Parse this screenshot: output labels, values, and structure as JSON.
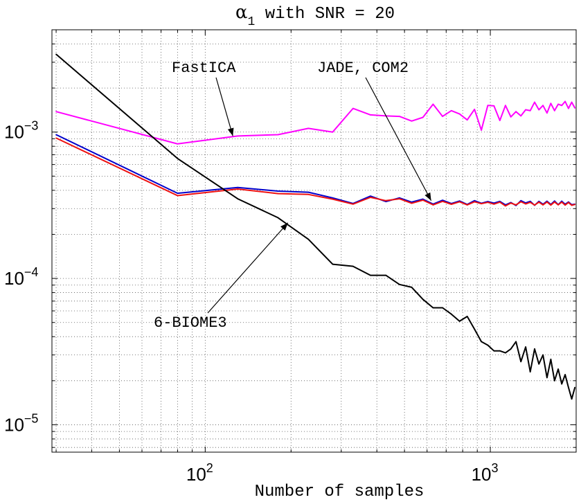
{
  "chart_data": {
    "type": "line",
    "title": {
      "symbol": "α",
      "subscript": "1",
      "text": " with SNR = 20"
    },
    "xlabel": "Number of samples",
    "ylabel": "",
    "xscale": "log",
    "yscale": "log",
    "xlim": [
      29,
      2000
    ],
    "ylim": [
      6.5e-06,
      0.005
    ],
    "grid": true,
    "x_ticks": [
      {
        "value": 100,
        "base": "10",
        "exp": "2"
      },
      {
        "value": 1000,
        "base": "10",
        "exp": "3"
      }
    ],
    "y_ticks": [
      {
        "value": 0.001,
        "base": "10",
        "exp": "−3"
      },
      {
        "value": 0.0001,
        "base": "10",
        "exp": "−4"
      },
      {
        "value": 1e-05,
        "base": "10",
        "exp": "−5"
      }
    ],
    "series": [
      {
        "name": "FastICA",
        "color": "#ff00ff",
        "x": [
          30,
          80,
          130,
          180,
          230,
          280,
          330,
          380,
          430,
          480,
          530,
          580,
          630,
          680,
          730,
          780,
          830,
          880,
          930,
          980,
          1030,
          1080,
          1130,
          1180,
          1230,
          1280,
          1330,
          1380,
          1430,
          1480,
          1530,
          1580,
          1630,
          1680,
          1730,
          1780,
          1830,
          1880,
          1930,
          1980
        ],
        "y": [
          0.00138,
          0.00083,
          0.00094,
          0.00096,
          0.00106,
          0.001,
          0.00145,
          0.00131,
          0.00129,
          0.00128,
          0.00119,
          0.00126,
          0.00155,
          0.00128,
          0.0014,
          0.00133,
          0.00121,
          0.00143,
          0.00103,
          0.00152,
          0.00151,
          0.0012,
          0.00152,
          0.00127,
          0.00138,
          0.00129,
          0.00142,
          0.0014,
          0.0016,
          0.00142,
          0.00152,
          0.00135,
          0.00157,
          0.0014,
          0.00155,
          0.00152,
          0.00162,
          0.00145,
          0.0016,
          0.00146
        ]
      },
      {
        "name": "JADE",
        "color": "#0000cc",
        "x": [
          30,
          80,
          130,
          180,
          230,
          280,
          330,
          380,
          430,
          480,
          530,
          580,
          630,
          680,
          730,
          780,
          830,
          880,
          930,
          980,
          1030,
          1080,
          1130,
          1180,
          1230,
          1280,
          1330,
          1380,
          1430,
          1480,
          1530,
          1580,
          1630,
          1680,
          1730,
          1780,
          1830,
          1880,
          1930,
          1980
        ],
        "y": [
          0.00096,
          0.000382,
          0.000418,
          0.000395,
          0.000388,
          0.000355,
          0.000325,
          0.000365,
          0.000335,
          0.000355,
          0.000332,
          0.000348,
          0.000322,
          0.000342,
          0.000325,
          0.000338,
          0.00032,
          0.00034,
          0.000326,
          0.000335,
          0.000327,
          0.000336,
          0.000318,
          0.00033,
          0.000315,
          0.00034,
          0.000328,
          0.000336,
          0.000316,
          0.000336,
          0.000321,
          0.000337,
          0.00032,
          0.000338,
          0.000319,
          0.000337,
          0.000321,
          0.000333,
          0.000319,
          0.000322
        ]
      },
      {
        "name": "COM2",
        "color": "#ee1111",
        "x": [
          30,
          80,
          130,
          180,
          230,
          280,
          330,
          380,
          430,
          480,
          530,
          580,
          630,
          680,
          730,
          780,
          830,
          880,
          930,
          980,
          1030,
          1080,
          1130,
          1180,
          1230,
          1280,
          1330,
          1380,
          1430,
          1480,
          1530,
          1580,
          1630,
          1680,
          1730,
          1780,
          1830,
          1880,
          1930,
          1980
        ],
        "y": [
          0.00091,
          0.000368,
          0.000408,
          0.00038,
          0.000375,
          0.000348,
          0.000322,
          0.000358,
          0.00034,
          0.00035,
          0.000326,
          0.000343,
          0.000318,
          0.000336,
          0.000321,
          0.000334,
          0.000318,
          0.000334,
          0.000324,
          0.000331,
          0.000322,
          0.000332,
          0.000313,
          0.000327,
          0.000318,
          0.000334,
          0.000323,
          0.000331,
          0.000317,
          0.000332,
          0.000318,
          0.000333,
          0.000317,
          0.000333,
          0.000318,
          0.000332,
          0.000317,
          0.00033,
          0.000316,
          0.00032
        ]
      },
      {
        "name": "6-BIOME3",
        "color": "#000000",
        "x": [
          30,
          80,
          130,
          180,
          230,
          280,
          330,
          380,
          430,
          480,
          530,
          580,
          630,
          680,
          730,
          780,
          830,
          880,
          930,
          980,
          1030,
          1080,
          1130,
          1180,
          1230,
          1280,
          1330,
          1380,
          1430,
          1480,
          1530,
          1580,
          1630,
          1680,
          1730,
          1780,
          1830,
          1880,
          1930,
          1980
        ],
        "y": [
          0.0034,
          0.00066,
          0.00035,
          0.00026,
          0.000185,
          0.000125,
          0.000121,
          0.000105,
          0.000105,
          9.1e-05,
          8.7e-05,
          7.2e-05,
          6.3e-05,
          6.3e-05,
          5.7e-05,
          5.1e-05,
          5.5e-05,
          4.5e-05,
          3.7e-05,
          3.5e-05,
          3.2e-05,
          3.2e-05,
          3.1e-05,
          3.3e-05,
          3.7e-05,
          2.7e-05,
          3.4e-05,
          2.3e-05,
          3.3e-05,
          2.6e-05,
          3e-05,
          2.1e-05,
          2.8e-05,
          2e-05,
          2.4e-05,
          1.9e-05,
          2.2e-05,
          1.8e-05,
          1.5e-05,
          1.8e-05
        ]
      }
    ],
    "annotations": [
      {
        "id": "fastica",
        "text": "FastICA",
        "arrow_to": {
          "x": 125,
          "y": 0.00094
        }
      },
      {
        "id": "jade-com2",
        "text": "JADE, COM2",
        "arrow_to": {
          "x": 620,
          "y": 0.00034
        }
      },
      {
        "id": "biome",
        "text": "6-BIOME3",
        "arrow_to": {
          "x": 195,
          "y": 0.00024
        }
      }
    ]
  }
}
